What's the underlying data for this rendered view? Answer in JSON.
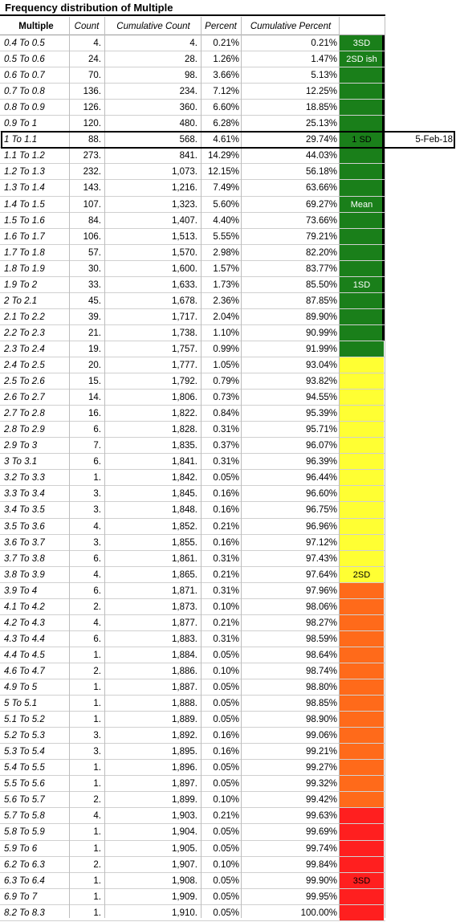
{
  "title": "Frequency distribution of Multiple",
  "headers": {
    "range": "Multiple",
    "count": "Count",
    "cum_count": "Cumulative Count",
    "percent": "Percent",
    "cum_percent": "Cumulative Percent"
  },
  "colors": {
    "green": "#1a7f1a",
    "yellow": "#ffff33",
    "orange": "#ff6a1a",
    "red": "#ff1f1f"
  },
  "rows": [
    {
      "range": "0.4 To 0.5",
      "count": "4.",
      "cum": "4.",
      "pct": "0.21%",
      "cpct": "0.21%",
      "band": "3SD"
    },
    {
      "range": "0.5 To 0.6",
      "count": "24.",
      "cum": "28.",
      "pct": "1.26%",
      "cpct": "1.47%",
      "band": "2SD ish"
    },
    {
      "range": "0.6 To 0.7",
      "count": "70.",
      "cum": "98.",
      "pct": "3.66%",
      "cpct": "5.13%",
      "band": ""
    },
    {
      "range": "0.7 To 0.8",
      "count": "136.",
      "cum": "234.",
      "pct": "7.12%",
      "cpct": "12.25%",
      "band": ""
    },
    {
      "range": "0.8 To 0.9",
      "count": "126.",
      "cum": "360.",
      "pct": "6.60%",
      "cpct": "18.85%",
      "band": ""
    },
    {
      "range": "0.9 To 1",
      "count": "120.",
      "cum": "480.",
      "pct": "6.28%",
      "cpct": "25.13%",
      "band": ""
    },
    {
      "range": "1 To 1.1",
      "count": "88.",
      "cum": "568.",
      "pct": "4.61%",
      "cpct": "29.74%",
      "band": "1 SD",
      "date": "5-Feb-18"
    },
    {
      "range": "1.1 To 1.2",
      "count": "273.",
      "cum": "841.",
      "pct": "14.29%",
      "cpct": "44.03%",
      "band": ""
    },
    {
      "range": "1.2 To 1.3",
      "count": "232.",
      "cum": "1,073.",
      "pct": "12.15%",
      "cpct": "56.18%",
      "band": ""
    },
    {
      "range": "1.3 To 1.4",
      "count": "143.",
      "cum": "1,216.",
      "pct": "7.49%",
      "cpct": "63.66%",
      "band": ""
    },
    {
      "range": "1.4 To 1.5",
      "count": "107.",
      "cum": "1,323.",
      "pct": "5.60%",
      "cpct": "69.27%",
      "band": "Mean"
    },
    {
      "range": "1.5 To 1.6",
      "count": "84.",
      "cum": "1,407.",
      "pct": "4.40%",
      "cpct": "73.66%",
      "band": ""
    },
    {
      "range": "1.6 To 1.7",
      "count": "106.",
      "cum": "1,513.",
      "pct": "5.55%",
      "cpct": "79.21%",
      "band": ""
    },
    {
      "range": "1.7 To 1.8",
      "count": "57.",
      "cum": "1,570.",
      "pct": "2.98%",
      "cpct": "82.20%",
      "band": ""
    },
    {
      "range": "1.8 To 1.9",
      "count": "30.",
      "cum": "1,600.",
      "pct": "1.57%",
      "cpct": "83.77%",
      "band": ""
    },
    {
      "range": "1.9 To 2",
      "count": "33.",
      "cum": "1,633.",
      "pct": "1.73%",
      "cpct": "85.50%",
      "band": "1SD"
    },
    {
      "range": "2 To 2.1",
      "count": "45.",
      "cum": "1,678.",
      "pct": "2.36%",
      "cpct": "87.85%",
      "band": ""
    },
    {
      "range": "2.1 To 2.2",
      "count": "39.",
      "cum": "1,717.",
      "pct": "2.04%",
      "cpct": "89.90%",
      "band": ""
    },
    {
      "range": "2.2 To 2.3",
      "count": "21.",
      "cum": "1,738.",
      "pct": "1.10%",
      "cpct": "90.99%",
      "band": ""
    },
    {
      "range": "2.3 To 2.4",
      "count": "19.",
      "cum": "1,757.",
      "pct": "0.99%",
      "cpct": "91.99%",
      "band": ""
    },
    {
      "range": "2.4 To 2.5",
      "count": "20.",
      "cum": "1,777.",
      "pct": "1.05%",
      "cpct": "93.04%",
      "band": ""
    },
    {
      "range": "2.5 To 2.6",
      "count": "15.",
      "cum": "1,792.",
      "pct": "0.79%",
      "cpct": "93.82%",
      "band": ""
    },
    {
      "range": "2.6 To 2.7",
      "count": "14.",
      "cum": "1,806.",
      "pct": "0.73%",
      "cpct": "94.55%",
      "band": ""
    },
    {
      "range": "2.7 To 2.8",
      "count": "16.",
      "cum": "1,822.",
      "pct": "0.84%",
      "cpct": "95.39%",
      "band": ""
    },
    {
      "range": "2.8 To 2.9",
      "count": "6.",
      "cum": "1,828.",
      "pct": "0.31%",
      "cpct": "95.71%",
      "band": ""
    },
    {
      "range": "2.9 To 3",
      "count": "7.",
      "cum": "1,835.",
      "pct": "0.37%",
      "cpct": "96.07%",
      "band": ""
    },
    {
      "range": "3 To 3.1",
      "count": "6.",
      "cum": "1,841.",
      "pct": "0.31%",
      "cpct": "96.39%",
      "band": ""
    },
    {
      "range": "3.2 To 3.3",
      "count": "1.",
      "cum": "1,842.",
      "pct": "0.05%",
      "cpct": "96.44%",
      "band": ""
    },
    {
      "range": "3.3 To 3.4",
      "count": "3.",
      "cum": "1,845.",
      "pct": "0.16%",
      "cpct": "96.60%",
      "band": ""
    },
    {
      "range": "3.4 To 3.5",
      "count": "3.",
      "cum": "1,848.",
      "pct": "0.16%",
      "cpct": "96.75%",
      "band": ""
    },
    {
      "range": "3.5 To 3.6",
      "count": "4.",
      "cum": "1,852.",
      "pct": "0.21%",
      "cpct": "96.96%",
      "band": ""
    },
    {
      "range": "3.6 To 3.7",
      "count": "3.",
      "cum": "1,855.",
      "pct": "0.16%",
      "cpct": "97.12%",
      "band": ""
    },
    {
      "range": "3.7 To 3.8",
      "count": "6.",
      "cum": "1,861.",
      "pct": "0.31%",
      "cpct": "97.43%",
      "band": ""
    },
    {
      "range": "3.8 To 3.9",
      "count": "4.",
      "cum": "1,865.",
      "pct": "0.21%",
      "cpct": "97.64%",
      "band": "2SD"
    },
    {
      "range": "3.9 To 4",
      "count": "6.",
      "cum": "1,871.",
      "pct": "0.31%",
      "cpct": "97.96%",
      "band": ""
    },
    {
      "range": "4.1 To 4.2",
      "count": "2.",
      "cum": "1,873.",
      "pct": "0.10%",
      "cpct": "98.06%",
      "band": ""
    },
    {
      "range": "4.2 To 4.3",
      "count": "4.",
      "cum": "1,877.",
      "pct": "0.21%",
      "cpct": "98.27%",
      "band": ""
    },
    {
      "range": "4.3 To 4.4",
      "count": "6.",
      "cum": "1,883.",
      "pct": "0.31%",
      "cpct": "98.59%",
      "band": ""
    },
    {
      "range": "4.4 To 4.5",
      "count": "1.",
      "cum": "1,884.",
      "pct": "0.05%",
      "cpct": "98.64%",
      "band": ""
    },
    {
      "range": "4.6 To 4.7",
      "count": "2.",
      "cum": "1,886.",
      "pct": "0.10%",
      "cpct": "98.74%",
      "band": ""
    },
    {
      "range": "4.9 To 5",
      "count": "1.",
      "cum": "1,887.",
      "pct": "0.05%",
      "cpct": "98.80%",
      "band": ""
    },
    {
      "range": "5 To 5.1",
      "count": "1.",
      "cum": "1,888.",
      "pct": "0.05%",
      "cpct": "98.85%",
      "band": ""
    },
    {
      "range": "5.1 To 5.2",
      "count": "1.",
      "cum": "1,889.",
      "pct": "0.05%",
      "cpct": "98.90%",
      "band": ""
    },
    {
      "range": "5.2 To 5.3",
      "count": "3.",
      "cum": "1,892.",
      "pct": "0.16%",
      "cpct": "99.06%",
      "band": ""
    },
    {
      "range": "5.3 To 5.4",
      "count": "3.",
      "cum": "1,895.",
      "pct": "0.16%",
      "cpct": "99.21%",
      "band": ""
    },
    {
      "range": "5.4 To 5.5",
      "count": "1.",
      "cum": "1,896.",
      "pct": "0.05%",
      "cpct": "99.27%",
      "band": ""
    },
    {
      "range": "5.5 To 5.6",
      "count": "1.",
      "cum": "1,897.",
      "pct": "0.05%",
      "cpct": "99.32%",
      "band": ""
    },
    {
      "range": "5.6 To 5.7",
      "count": "2.",
      "cum": "1,899.",
      "pct": "0.10%",
      "cpct": "99.42%",
      "band": ""
    },
    {
      "range": "5.7 To 5.8",
      "count": "4.",
      "cum": "1,903.",
      "pct": "0.21%",
      "cpct": "99.63%",
      "band": ""
    },
    {
      "range": "5.8 To 5.9",
      "count": "1.",
      "cum": "1,904.",
      "pct": "0.05%",
      "cpct": "99.69%",
      "band": ""
    },
    {
      "range": "5.9 To 6",
      "count": "1.",
      "cum": "1,905.",
      "pct": "0.05%",
      "cpct": "99.74%",
      "band": ""
    },
    {
      "range": "6.2 To 6.3",
      "count": "2.",
      "cum": "1,907.",
      "pct": "0.10%",
      "cpct": "99.84%",
      "band": ""
    },
    {
      "range": "6.3 To 6.4",
      "count": "1.",
      "cum": "1,908.",
      "pct": "0.05%",
      "cpct": "99.90%",
      "band": "3SD"
    },
    {
      "range": "6.9 To 7",
      "count": "1.",
      "cum": "1,909.",
      "pct": "0.05%",
      "cpct": "99.95%",
      "band": ""
    },
    {
      "range": "8.2 To 8.3",
      "count": "1.",
      "cum": "1,910.",
      "pct": "0.05%",
      "cpct": "100.00%",
      "band": ""
    }
  ],
  "band_colors": [
    {
      "from": 0,
      "to": 20,
      "color": "green"
    },
    {
      "from": 20,
      "to": 34,
      "color": "yellow"
    },
    {
      "from": 34,
      "to": 48,
      "color": "orange"
    },
    {
      "from": 48,
      "to": 55,
      "color": "red"
    }
  ]
}
